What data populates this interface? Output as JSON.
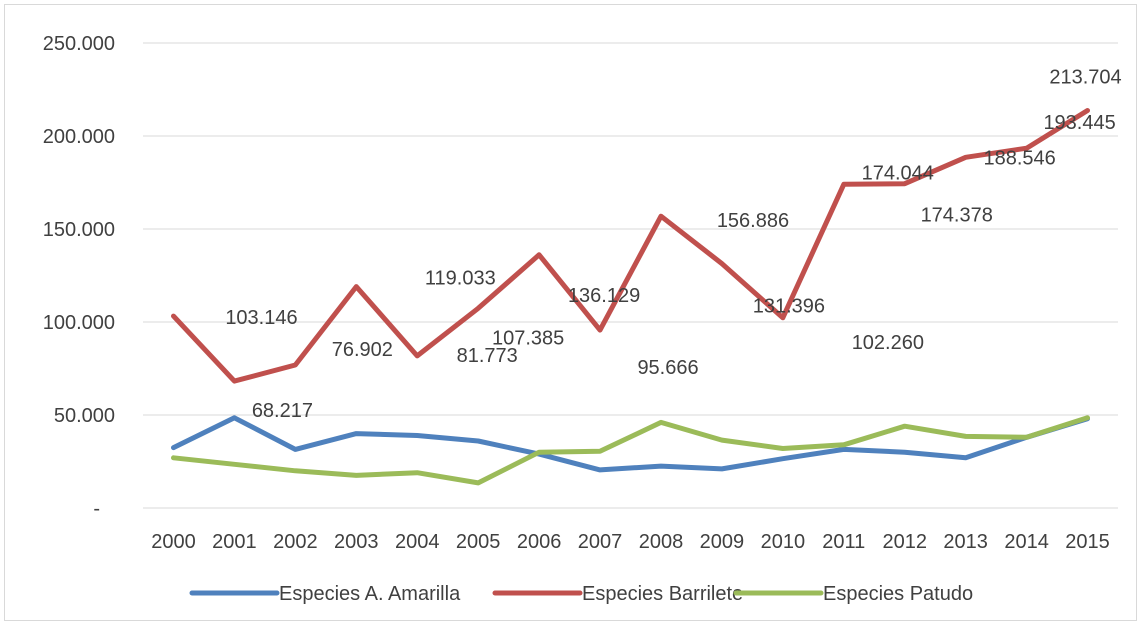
{
  "chart_data": {
    "type": "line",
    "title": "",
    "xlabel": "",
    "ylabel": "",
    "categories": [
      "2000",
      "2001",
      "2002",
      "2003",
      "2004",
      "2005",
      "2006",
      "2007",
      "2008",
      "2009",
      "2010",
      "2011",
      "2012",
      "2013",
      "2014",
      "2015"
    ],
    "ylim": [
      0,
      250000
    ],
    "y_ticks": [
      {
        "value": 0,
        "label": "-"
      },
      {
        "value": 50000,
        "label": "50.000"
      },
      {
        "value": 100000,
        "label": "100.000"
      },
      {
        "value": 150000,
        "label": "150.000"
      },
      {
        "value": 200000,
        "label": "200.000"
      },
      {
        "value": 250000,
        "label": "250.000"
      }
    ],
    "grid": true,
    "legend_position": "bottom",
    "series": [
      {
        "name": "Especies A. Amarilla",
        "color": "#4f81bd",
        "values": [
          32500,
          48500,
          31500,
          40000,
          39000,
          36000,
          29000,
          20500,
          22500,
          21000,
          26500,
          31500,
          30000,
          27000,
          38000,
          48000
        ]
      },
      {
        "name": "Especies Barrilete",
        "color": "#c0504d",
        "values": [
          103146,
          68217,
          76902,
          119033,
          81773,
          107385,
          136129,
          95666,
          156886,
          131396,
          102260,
          174044,
          174378,
          188546,
          193445,
          213704
        ],
        "labels": [
          "103.146",
          "68.217",
          "76.902",
          "119.033",
          "81.773",
          "107.385",
          "136.129",
          "95.666",
          "156.886",
          "131.396",
          "102.260",
          "174.044",
          "174.378",
          "188.546",
          "193.445",
          "213.704"
        ]
      },
      {
        "name": "Especies Patudo",
        "color": "#9bbb59",
        "values": [
          27000,
          23500,
          20000,
          17500,
          19000,
          13500,
          30000,
          30500,
          46000,
          36500,
          32000,
          34000,
          44000,
          38500,
          38000,
          48500
        ]
      }
    ]
  }
}
